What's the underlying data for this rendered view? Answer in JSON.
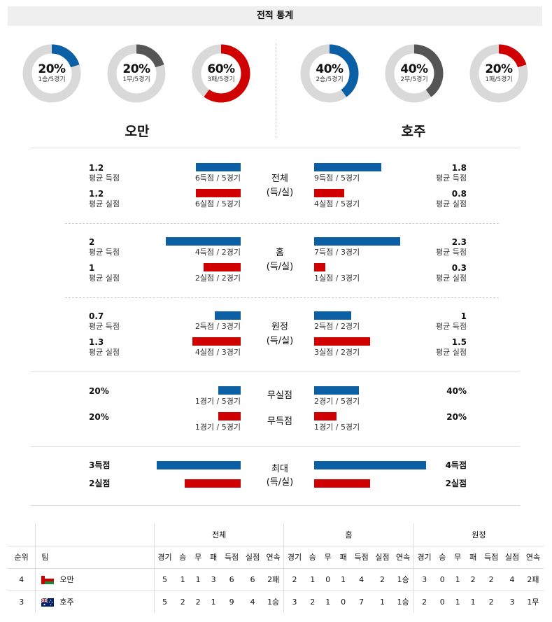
{
  "header": {
    "title": "전적 통계"
  },
  "donuts": {
    "oman": [
      {
        "pct": "20%",
        "sub": "1승/5경기",
        "value": 0.2,
        "color": "#0b5fa5"
      },
      {
        "pct": "20%",
        "sub": "1무/5경기",
        "value": 0.2,
        "color": "#555555"
      },
      {
        "pct": "60%",
        "sub": "3패/5경기",
        "value": 0.6,
        "color": "#d00000"
      }
    ],
    "aus": [
      {
        "pct": "40%",
        "sub": "2승/5경기",
        "value": 0.4,
        "color": "#0b5fa5"
      },
      {
        "pct": "40%",
        "sub": "2무/5경기",
        "value": 0.4,
        "color": "#555555"
      },
      {
        "pct": "20%",
        "sub": "1패/5경기",
        "value": 0.2,
        "color": "#d00000"
      }
    ]
  },
  "teams": {
    "left": "오만",
    "right": "호주"
  },
  "sections": {
    "total": {
      "label1": "전체",
      "label2": "(득/실)",
      "l_score_val": "1.2",
      "l_score_lab": "평균 득점",
      "l_score_bar": "6득점 / 5경기",
      "l_conc_val": "1.2",
      "l_conc_lab": "평균 실점",
      "l_conc_bar": "6실점 / 5경기",
      "r_score_val": "1.8",
      "r_score_lab": "평균 득점",
      "r_score_bar": "9득점 / 5경기",
      "r_conc_val": "0.8",
      "r_conc_lab": "평균 실점",
      "r_conc_bar": "4실점 / 5경기"
    },
    "home": {
      "label1": "홈",
      "label2": "(득/실)",
      "l_score_val": "2",
      "l_score_lab": "평균 득점",
      "l_score_bar": "4득점 / 2경기",
      "l_conc_val": "1",
      "l_conc_lab": "평균 실점",
      "l_conc_bar": "2실점 / 2경기",
      "r_score_val": "2.3",
      "r_score_lab": "평균 득점",
      "r_score_bar": "7득점 / 3경기",
      "r_conc_val": "0.3",
      "r_conc_lab": "평균 실점",
      "r_conc_bar": "1실점 / 3경기"
    },
    "away": {
      "label1": "원정",
      "label2": "(득/실)",
      "l_score_val": "0.7",
      "l_score_lab": "평균 득점",
      "l_score_bar": "2득점 / 3경기",
      "l_conc_val": "1.3",
      "l_conc_lab": "평균 실점",
      "l_conc_bar": "4실점 / 3경기",
      "r_score_val": "1",
      "r_score_lab": "평균 득점",
      "r_score_bar": "2득점 / 2경기",
      "r_conc_val": "1.5",
      "r_conc_lab": "평균 실점",
      "r_conc_bar": "3실점 / 2경기"
    },
    "clean": {
      "label_cs": "무실점",
      "label_fts": "무득점",
      "l_cs_val": "20%",
      "l_cs_bar": "1경기 / 5경기",
      "l_fts_val": "20%",
      "l_fts_bar": "1경기 / 5경기",
      "r_cs_val": "40%",
      "r_cs_bar": "2경기 / 5경기",
      "r_fts_val": "20%",
      "r_fts_bar": "1경기 / 5경기"
    },
    "max": {
      "label1": "최대",
      "label2": "(득/실)",
      "l_score": "3득점",
      "l_conc": "2실점",
      "r_score": "4득점",
      "r_conc": "2실점"
    }
  },
  "table": {
    "groups": [
      "전체",
      "홈",
      "원정"
    ],
    "col_rank": "순위",
    "col_team": "팀",
    "cols": [
      "경기",
      "승",
      "무",
      "패",
      "득점",
      "실점",
      "연속"
    ],
    "rows": [
      {
        "rank": "4",
        "team": "오만",
        "flag": "oman-flag-icon",
        "total": [
          "5",
          "1",
          "1",
          "3",
          "6",
          "6",
          "2패"
        ],
        "home": [
          "2",
          "1",
          "0",
          "1",
          "4",
          "2",
          "1승"
        ],
        "away": [
          "3",
          "0",
          "1",
          "2",
          "2",
          "4",
          "2패"
        ]
      },
      {
        "rank": "3",
        "team": "호주",
        "flag": "australia-flag-icon",
        "total": [
          "5",
          "2",
          "2",
          "1",
          "9",
          "4",
          "1승"
        ],
        "home": [
          "3",
          "2",
          "1",
          "0",
          "7",
          "1",
          "1승"
        ],
        "away": [
          "2",
          "0",
          "1",
          "1",
          "2",
          "3",
          "1무"
        ]
      }
    ]
  }
}
